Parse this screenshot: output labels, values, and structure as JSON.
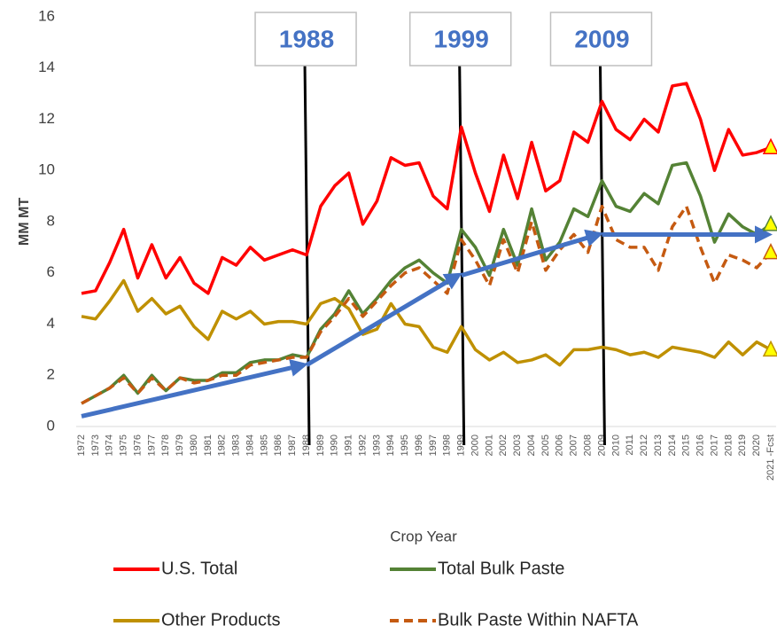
{
  "chart_data": {
    "type": "line",
    "x_label": "Crop Year",
    "y_label": "MM MT",
    "ylim": [
      0,
      16
    ],
    "yticks": [
      0,
      2,
      4,
      6,
      8,
      10,
      12,
      14,
      16
    ],
    "grid": false,
    "legend": "bottom",
    "categories": [
      "1972",
      "1973",
      "1974",
      "1975",
      "1976",
      "1977",
      "1978",
      "1979",
      "1980",
      "1981",
      "1982",
      "1983",
      "1984",
      "1985",
      "1986",
      "1987",
      "1988",
      "1989",
      "1990",
      "1991",
      "1992",
      "1993",
      "1994",
      "1995",
      "1996",
      "1997",
      "1998",
      "1999",
      "2000",
      "2001",
      "2002",
      "2003",
      "2004",
      "2005",
      "2006",
      "2007",
      "2008",
      "2009",
      "2010",
      "2011",
      "2012",
      "2013",
      "2014",
      "2015",
      "2016",
      "2017",
      "2018",
      "2019",
      "2020",
      "2021 -Fcst"
    ],
    "series": [
      {
        "name": "U.S. Total",
        "color": "#ff0000",
        "dash": false,
        "values": [
          5.2,
          5.3,
          6.4,
          7.7,
          5.8,
          7.1,
          5.8,
          6.6,
          5.6,
          5.2,
          6.6,
          6.3,
          7.0,
          6.5,
          6.7,
          6.9,
          6.7,
          8.6,
          9.4,
          9.9,
          7.9,
          8.8,
          10.5,
          10.2,
          10.3,
          9.0,
          8.5,
          11.7,
          9.9,
          8.4,
          10.6,
          8.9,
          11.1,
          9.2,
          9.6,
          11.5,
          11.1,
          12.7,
          11.6,
          11.2,
          12.0,
          11.5,
          13.3,
          13.4,
          12.0,
          10.0,
          11.6,
          10.6,
          10.7,
          10.9
        ]
      },
      {
        "name": "Total Bulk Paste",
        "color": "#548235",
        "dash": false,
        "values": [
          0.9,
          1.2,
          1.5,
          2.0,
          1.3,
          2.0,
          1.4,
          1.9,
          1.8,
          1.8,
          2.1,
          2.1,
          2.5,
          2.6,
          2.6,
          2.8,
          2.7,
          3.8,
          4.4,
          5.3,
          4.4,
          5.0,
          5.7,
          6.2,
          6.5,
          6.0,
          5.6,
          7.7,
          7.0,
          5.9,
          7.7,
          6.3,
          8.5,
          6.5,
          7.2,
          8.5,
          8.2,
          9.6,
          8.6,
          8.4,
          9.1,
          8.7,
          10.2,
          10.3,
          9.0,
          7.2,
          8.3,
          7.8,
          7.5,
          7.9
        ]
      },
      {
        "name": "Other Products",
        "color": "#bf9000",
        "dash": false,
        "values": [
          4.3,
          4.2,
          4.9,
          5.7,
          4.5,
          5.0,
          4.4,
          4.7,
          3.9,
          3.4,
          4.5,
          4.2,
          4.5,
          4.0,
          4.1,
          4.1,
          4.0,
          4.8,
          5.0,
          4.6,
          3.6,
          3.8,
          4.8,
          4.0,
          3.9,
          3.1,
          2.9,
          3.9,
          3.0,
          2.6,
          2.9,
          2.5,
          2.6,
          2.8,
          2.4,
          3.0,
          3.0,
          3.1,
          3.0,
          2.8,
          2.9,
          2.7,
          3.1,
          3.0,
          2.9,
          2.7,
          3.3,
          2.8,
          3.3,
          3.0
        ]
      },
      {
        "name": "Bulk Paste Within NAFTA",
        "color": "#c55a11",
        "dash": true,
        "values": [
          0.9,
          1.2,
          1.5,
          1.9,
          1.3,
          1.9,
          1.4,
          1.9,
          1.7,
          1.8,
          2.0,
          2.0,
          2.4,
          2.5,
          2.6,
          2.7,
          2.7,
          3.7,
          4.3,
          5.0,
          4.3,
          4.9,
          5.5,
          6.0,
          6.2,
          5.7,
          5.2,
          7.3,
          6.5,
          5.5,
          7.3,
          6.0,
          8.0,
          6.1,
          6.9,
          7.5,
          6.8,
          8.6,
          7.3,
          7.0,
          7.0,
          6.1,
          7.8,
          8.6,
          7.0,
          5.6,
          6.7,
          6.5,
          6.2,
          6.8
        ]
      }
    ],
    "trend": {
      "color": "#4472c4",
      "x": [
        "1972",
        "1988",
        "1999",
        "2009",
        "2021 -Fcst"
      ],
      "values": [
        0.4,
        2.4,
        5.9,
        7.5,
        7.5
      ]
    },
    "annotations": [
      {
        "label": "1988",
        "x": "1988"
      },
      {
        "label": "1999",
        "x": "1999"
      },
      {
        "label": "2009",
        "x": "2009"
      }
    ]
  }
}
